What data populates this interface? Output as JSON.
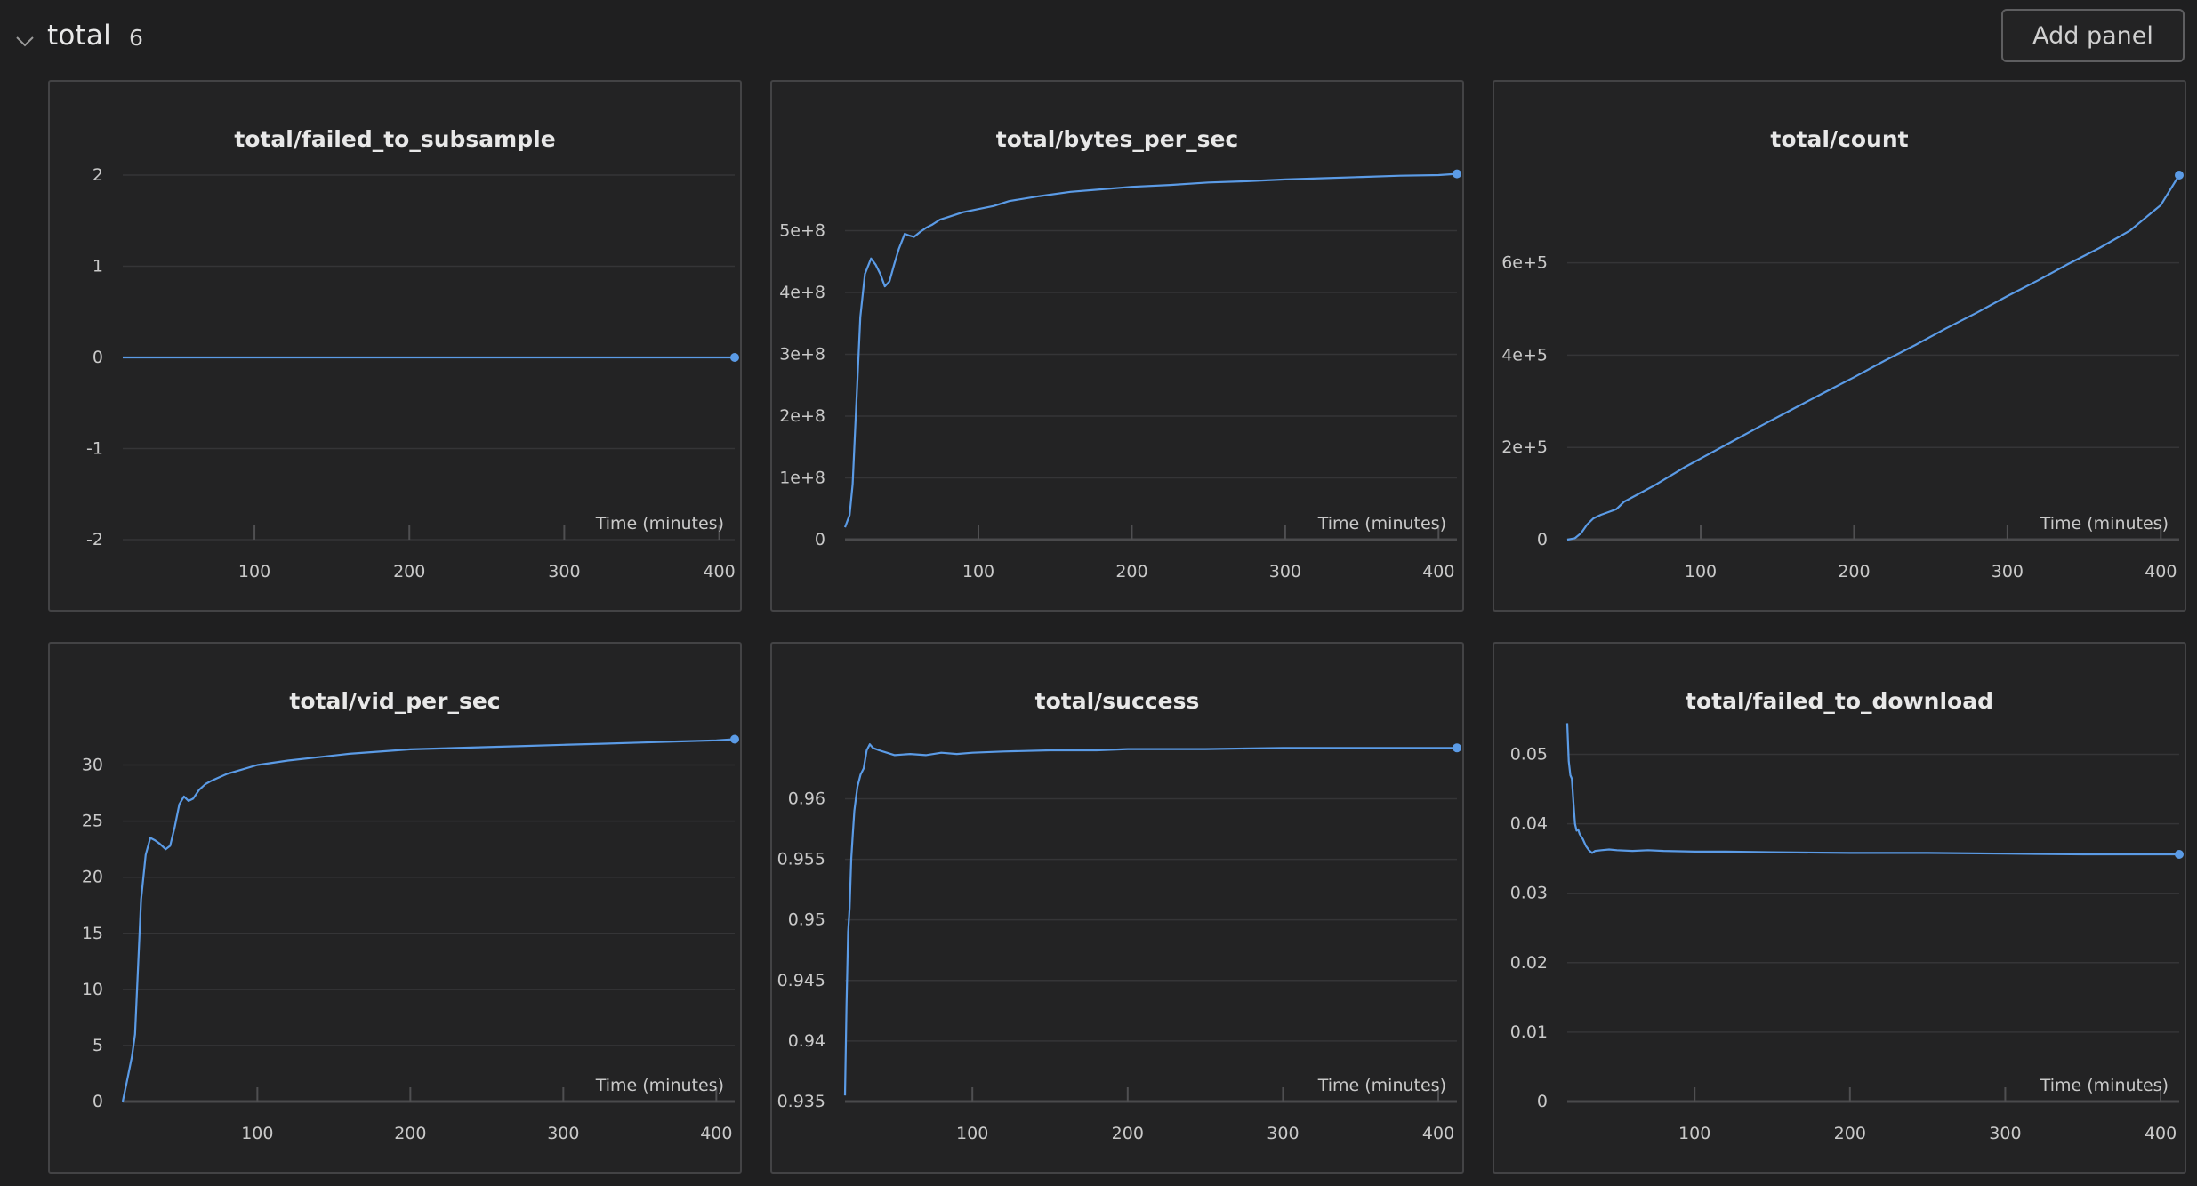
{
  "section": {
    "title": "total",
    "count": "6",
    "add_panel_label": "Add panel",
    "chevron_icon": "chevron-down-icon"
  },
  "colors": {
    "background": "#1f1f20",
    "panel_bg": "#232324",
    "panel_border": "#434345",
    "series": "#5b9be6"
  },
  "chart_data": [
    {
      "type": "line",
      "title": "total/failed_to_subsample",
      "xlabel": "Time (minutes)",
      "xlim": [
        15,
        410
      ],
      "ylim": [
        -2,
        2
      ],
      "xticks": [
        100,
        200,
        300,
        400
      ],
      "yticks": [
        -2,
        -1,
        0,
        1,
        2
      ],
      "ytick_labels": [
        "-2",
        "-1",
        "0",
        "1",
        "2"
      ],
      "grid": true,
      "series": [
        {
          "x": [
            15,
            410
          ],
          "y": [
            0,
            0
          ]
        }
      ]
    },
    {
      "type": "line",
      "title": "total/bytes_per_sec",
      "xlabel": "Time (minutes)",
      "xlim": [
        13,
        412
      ],
      "ylim": [
        0,
        590000000
      ],
      "xticks": [
        100,
        200,
        300,
        400
      ],
      "yticks": [
        0,
        100000000,
        200000000,
        300000000,
        400000000,
        500000000
      ],
      "ytick_labels": [
        "0",
        "1e+8",
        "2e+8",
        "3e+8",
        "4e+8",
        "5e+8"
      ],
      "grid": true,
      "series": [
        {
          "x": [
            13,
            16,
            18,
            20,
            23,
            26,
            30,
            33,
            36,
            39,
            42,
            45,
            48,
            52,
            55,
            58,
            62,
            66,
            70,
            75,
            80,
            90,
            100,
            110,
            120,
            140,
            160,
            180,
            200,
            225,
            250,
            275,
            300,
            325,
            350,
            375,
            400,
            412
          ],
          "y": [
            20000000,
            40000000,
            90000000,
            200000000,
            360000000,
            430000000,
            455000000,
            445000000,
            430000000,
            410000000,
            418000000,
            445000000,
            470000000,
            495000000,
            492000000,
            490000000,
            498000000,
            505000000,
            510000000,
            518000000,
            522000000,
            530000000,
            535000000,
            540000000,
            548000000,
            556000000,
            563000000,
            567000000,
            571000000,
            574000000,
            578000000,
            580000000,
            583000000,
            585000000,
            587000000,
            589000000,
            590000000,
            592000000
          ]
        }
      ]
    },
    {
      "type": "line",
      "title": "total/count",
      "xlabel": "Time (minutes)",
      "xlim": [
        13,
        412
      ],
      "ylim": [
        0,
        790000
      ],
      "xticks": [
        100,
        200,
        300,
        400
      ],
      "yticks": [
        0,
        200000,
        400000,
        600000
      ],
      "ytick_labels": [
        "0",
        "2e+5",
        "4e+5",
        "6e+5"
      ],
      "grid": true,
      "series": [
        {
          "x": [
            13,
            18,
            22,
            26,
            30,
            35,
            40,
            45,
            50,
            60,
            70,
            80,
            90,
            100,
            120,
            140,
            160,
            180,
            200,
            220,
            240,
            260,
            280,
            300,
            320,
            340,
            360,
            380,
            400,
            412
          ],
          "y": [
            0,
            3000,
            14000,
            33000,
            46000,
            54000,
            60000,
            66000,
            82000,
            100000,
            118000,
            138000,
            158000,
            176000,
            212000,
            248000,
            283000,
            318000,
            352000,
            388000,
            422000,
            458000,
            492000,
            528000,
            562000,
            598000,
            632000,
            670000,
            725000,
            790000
          ]
        }
      ]
    },
    {
      "type": "line",
      "title": "total/vid_per_sec",
      "xlabel": "Time (minutes)",
      "xlim": [
        12,
        412
      ],
      "ylim": [
        0,
        32.5
      ],
      "xticks": [
        100,
        200,
        300,
        400
      ],
      "yticks": [
        0,
        5,
        10,
        15,
        20,
        25,
        30
      ],
      "ytick_labels": [
        "0",
        "5",
        "10",
        "15",
        "20",
        "25",
        "30"
      ],
      "grid": true,
      "series": [
        {
          "x": [
            12,
            15,
            18,
            20,
            22,
            24,
            27,
            30,
            33,
            36,
            40,
            43,
            46,
            49,
            52,
            55,
            58,
            62,
            66,
            70,
            75,
            80,
            90,
            100,
            120,
            140,
            160,
            180,
            200,
            225,
            250,
            275,
            300,
            325,
            350,
            375,
            400,
            412
          ],
          "y": [
            0,
            2,
            4,
            6,
            12,
            18,
            22,
            23.5,
            23.3,
            23,
            22.5,
            22.8,
            24.5,
            26.5,
            27.2,
            26.8,
            27,
            27.8,
            28.3,
            28.6,
            28.9,
            29.2,
            29.6,
            30,
            30.4,
            30.7,
            31,
            31.2,
            31.4,
            31.5,
            31.6,
            31.7,
            31.8,
            31.9,
            32,
            32.1,
            32.2,
            32.3
          ]
        }
      ]
    },
    {
      "type": "line",
      "title": "total/success",
      "xlabel": "Time (minutes)",
      "xlim": [
        18,
        412
      ],
      "ylim": [
        0.935,
        0.9651
      ],
      "xticks": [
        100,
        200,
        300,
        400
      ],
      "yticks": [
        0.935,
        0.94,
        0.945,
        0.95,
        0.955,
        0.96
      ],
      "ytick_labels": [
        "0.935",
        "0.94",
        "0.945",
        "0.95",
        "0.955",
        "0.96"
      ],
      "grid": true,
      "series": [
        {
          "x": [
            18,
            19,
            20,
            21,
            22,
            23,
            24,
            25,
            26,
            28,
            30,
            32,
            34,
            36,
            40,
            45,
            50,
            60,
            70,
            80,
            90,
            100,
            120,
            150,
            180,
            200,
            250,
            300,
            350,
            400,
            412
          ],
          "y": [
            0.9355,
            0.943,
            0.949,
            0.951,
            0.955,
            0.957,
            0.959,
            0.96,
            0.961,
            0.962,
            0.9625,
            0.964,
            0.9645,
            0.9642,
            0.964,
            0.9638,
            0.9636,
            0.9637,
            0.9636,
            0.9638,
            0.9637,
            0.9638,
            0.9639,
            0.964,
            0.964,
            0.9641,
            0.9641,
            0.9642,
            0.9642,
            0.9642,
            0.9642
          ]
        }
      ]
    },
    {
      "type": "line",
      "title": "total/failed_to_download",
      "xlabel": "Time (minutes)",
      "xlim": [
        18,
        412
      ],
      "ylim": [
        0,
        0.0525
      ],
      "xticks": [
        100,
        200,
        300,
        400
      ],
      "yticks": [
        0,
        0.01,
        0.02,
        0.03,
        0.04,
        0.05
      ],
      "ytick_labels": [
        "0",
        "0.01",
        "0.02",
        "0.03",
        "0.04",
        "0.05"
      ],
      "grid": true,
      "series": [
        {
          "x": [
            18,
            19,
            20,
            21,
            22,
            23,
            24,
            25,
            26,
            28,
            30,
            32,
            34,
            36,
            40,
            45,
            50,
            60,
            70,
            80,
            100,
            120,
            150,
            200,
            250,
            300,
            350,
            400,
            412
          ],
          "y": [
            0.0545,
            0.049,
            0.047,
            0.0465,
            0.043,
            0.04,
            0.039,
            0.0392,
            0.0385,
            0.0378,
            0.0368,
            0.0362,
            0.0358,
            0.0361,
            0.0362,
            0.0363,
            0.0362,
            0.0361,
            0.0362,
            0.0361,
            0.036,
            0.036,
            0.0359,
            0.0358,
            0.0358,
            0.0357,
            0.0356,
            0.0356,
            0.0356
          ]
        }
      ]
    }
  ]
}
